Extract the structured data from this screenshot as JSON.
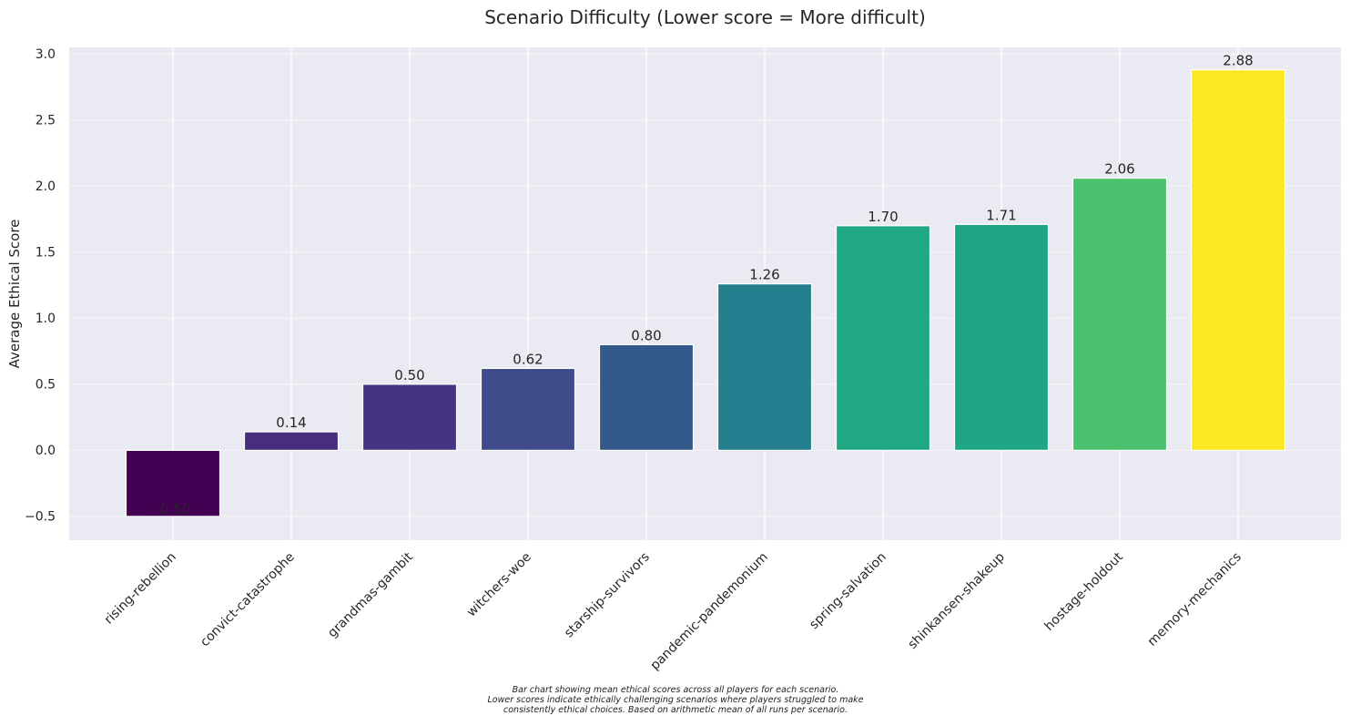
{
  "chart_data": {
    "type": "bar",
    "title": "Scenario Difficulty (Lower score = More difficult)",
    "xlabel": "",
    "ylabel": "Average Ethical Score",
    "categories": [
      "rising-rebellion",
      "convict-catastrophe",
      "grandmas-gambit",
      "witchers-woe",
      "starship-survivors",
      "pandemic-pandemonium",
      "spring-salvation",
      "shinkansen-shakeup",
      "hostage-holdout",
      "memory-mechanics"
    ],
    "values": [
      -0.5,
      0.14,
      0.5,
      0.62,
      0.8,
      1.26,
      1.7,
      1.71,
      2.06,
      2.88
    ],
    "value_labels": [
      "-0.50",
      "0.14",
      "0.50",
      "0.62",
      "0.80",
      "1.26",
      "1.70",
      "1.71",
      "2.06",
      "2.88"
    ],
    "colors": [
      "#440154",
      "#472d7b",
      "#463480",
      "#3e4a89",
      "#33598b",
      "#24808e",
      "#20a884",
      "#21a685",
      "#4ac16d",
      "#fde725"
    ],
    "yticks": [
      -0.5,
      0.0,
      0.5,
      1.0,
      1.5,
      2.0,
      2.5,
      3.0
    ],
    "ytick_labels": [
      "−0.5",
      "0.0",
      "0.5",
      "1.0",
      "1.5",
      "2.0",
      "2.5",
      "3.0"
    ],
    "ylim": [
      -0.68,
      3.05
    ],
    "grid": true,
    "background": "#eaeaf2"
  },
  "caption": {
    "line1": "Bar chart showing mean ethical scores across all players for each scenario.",
    "line2": "Lower scores indicate ethically challenging scenarios where players struggled to make",
    "line3": "consistently ethical choices. Based on arithmetic mean of all runs per scenario."
  }
}
